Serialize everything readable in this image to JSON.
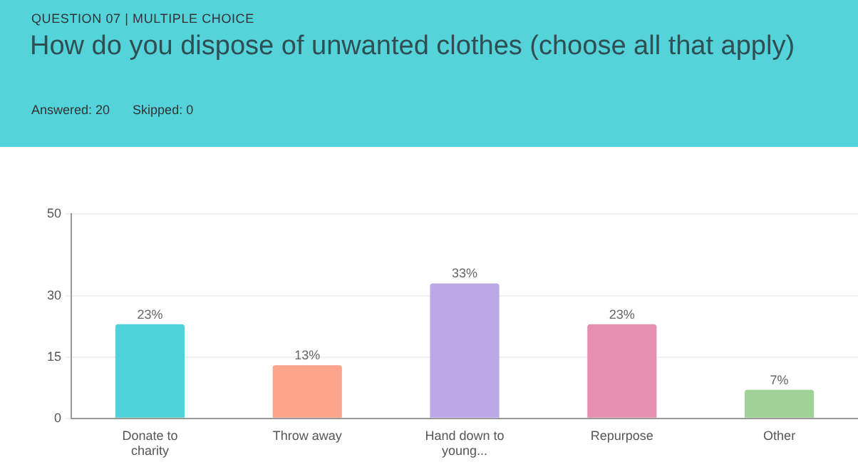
{
  "chart_data": {
    "type": "bar",
    "title": "How do you dispose of unwanted clothes (choose all that apply)",
    "subtitle": "QUESTION 07 | MULTIPLE CHOICE",
    "annotations": [
      "Answered: 20",
      "Skipped: 0"
    ],
    "categories": [
      "Donate to charity",
      "Throw away",
      "Hand down to young...",
      "Repurpose",
      "Other"
    ],
    "values": [
      23,
      13,
      33,
      23,
      7
    ],
    "value_labels": [
      "23%",
      "13%",
      "33%",
      "23%",
      "7%"
    ],
    "colors": [
      "#50d2da",
      "#fba58c",
      "#bca8e6",
      "#e78fae",
      "#a0d196"
    ],
    "ylim": [
      0,
      50
    ],
    "yticks": [
      0,
      15,
      30,
      50
    ],
    "grid": "y"
  }
}
